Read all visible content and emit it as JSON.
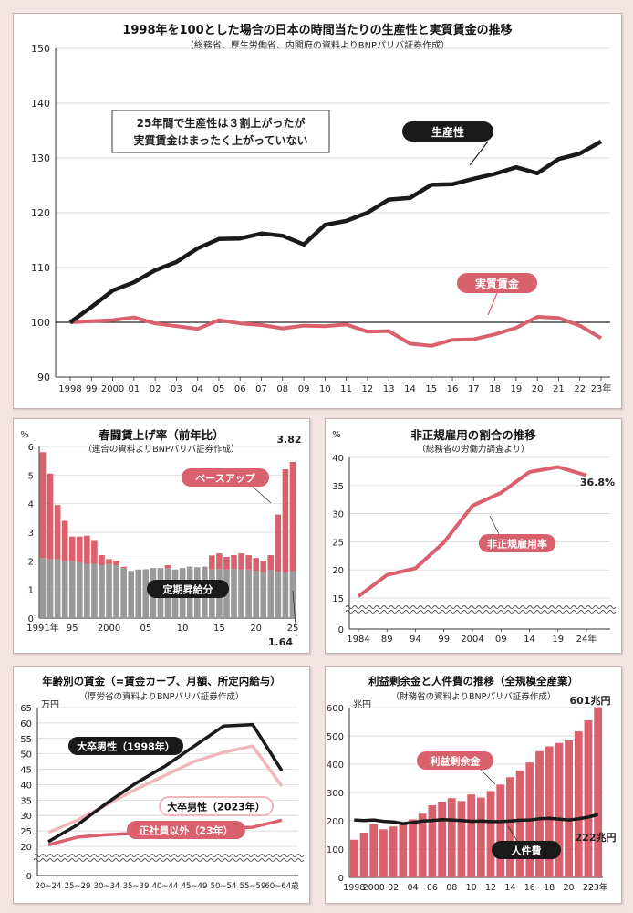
{
  "colors": {
    "black": "#1a1a1a",
    "red": "#d9606d",
    "pink_light": "#f0b6bd",
    "gray": "#9a9a9a"
  },
  "top": {
    "title": "1998年を100とした場合の日本の時間当たりの生産性と実質賃金の推移",
    "subtitle": "（総務省、厚生労働省、内閣府の資料よりBNPパリバ証券作成）",
    "callout_line1": "25年間で生産性は３割上がったが",
    "callout_line2": "実質賃金はまったく上がっていない",
    "x_tick_labels": [
      "1998",
      "99",
      "2000",
      "01",
      "02",
      "03",
      "04",
      "05",
      "06",
      "07",
      "08",
      "09",
      "10",
      "11",
      "12",
      "13",
      "14",
      "15",
      "16",
      "17",
      "18",
      "19",
      "20",
      "21",
      "22",
      "23年"
    ]
  },
  "wage": {
    "title": "春闘賃上げ率（前年比）",
    "subtitle": "（連合の資料よりBNPパリバ証券作成）",
    "unit": "%"
  },
  "nonreg": {
    "title": "非正規雇用の割合の推移",
    "subtitle": "（総務省の労働力調査より）",
    "unit": "%",
    "end_label": "36.8%"
  },
  "age": {
    "title": "年齢別の賃金（=賃金カーブ、月額、所定内給与）",
    "subtitle": "（厚労省の資料よりBNPパリバ証券作成）",
    "unit": "万円"
  },
  "profit": {
    "title": "利益剰余金と人件費の推移（全規模全産業）",
    "subtitle": "（財務省の資料よりBNPパリバ証券作成）",
    "unit": "兆円",
    "end_label_profit": "601兆円",
    "end_label_labor": "222兆円"
  },
  "chart_data": [
    {
      "type": "line",
      "title": "1998年を100とした場合の日本の時間当たりの生産性と実質賃金の推移",
      "x": [
        "1998",
        "99",
        "2000",
        "01",
        "02",
        "03",
        "04",
        "05",
        "06",
        "07",
        "08",
        "09",
        "10",
        "11",
        "12",
        "13",
        "14",
        "15",
        "16",
        "17",
        "18",
        "19",
        "20",
        "21",
        "22",
        "23年"
      ],
      "ylim": [
        90,
        150
      ],
      "y_ticks": [
        "90",
        "100",
        "110",
        "120",
        "130",
        "140",
        "150"
      ],
      "series": [
        {
          "name": "生産性",
          "color": "#1a1a1a",
          "values": [
            100,
            102.8,
            105.8,
            107.3,
            109.5,
            111,
            113.5,
            115.2,
            115.3,
            116.2,
            115.8,
            114.2,
            117.8,
            118.5,
            120,
            122.4,
            122.7,
            125.1,
            125.2,
            126.2,
            127.1,
            128.3,
            127.2,
            129.8,
            130.8,
            133
          ]
        },
        {
          "name": "実質賃金",
          "color": "#d9606d",
          "values": [
            100,
            100.2,
            100.4,
            100.9,
            99.8,
            99.3,
            98.8,
            100.4,
            99.8,
            99.5,
            98.9,
            99.4,
            99.3,
            99.6,
            98.3,
            98.4,
            96.1,
            95.7,
            96.8,
            96.9,
            97.8,
            99,
            101,
            100.8,
            99.4,
            97.1
          ]
        }
      ]
    },
    {
      "type": "bar",
      "title": "春闘賃上げ率（前年比）",
      "x_tick_labels": [
        "1991年",
        "95",
        "2000",
        "05",
        "10",
        "15",
        "20",
        "25"
      ],
      "ylim": [
        0,
        6
      ],
      "y_ticks": [
        "0",
        "1",
        "2",
        "3",
        "4",
        "5",
        "6"
      ],
      "categories": [
        "1991",
        "1992",
        "1993",
        "1994",
        "1995",
        "1996",
        "1997",
        "1998",
        "1999",
        "2000",
        "2001",
        "2002",
        "2003",
        "2004",
        "2005",
        "2006",
        "2007",
        "2008",
        "2009",
        "2010",
        "2011",
        "2012",
        "2013",
        "2014",
        "2015",
        "2016",
        "2017",
        "2018",
        "2019",
        "2020",
        "2021",
        "2022",
        "2023",
        "2024",
        "2025"
      ],
      "series": [
        {
          "name": "定期昇給分",
          "color": "#9a9a9a",
          "values": [
            2.1,
            2.05,
            2.05,
            2.0,
            2.0,
            1.95,
            1.9,
            1.9,
            1.85,
            1.9,
            1.85,
            1.75,
            1.65,
            1.7,
            1.7,
            1.75,
            1.75,
            1.75,
            1.7,
            1.75,
            1.8,
            1.78,
            1.8,
            1.7,
            1.72,
            1.7,
            1.72,
            1.7,
            1.7,
            1.65,
            1.6,
            1.68,
            1.62,
            1.6,
            1.64
          ]
        },
        {
          "name": "ベースアップ",
          "color": "#d9606d",
          "values": [
            3.7,
            3.0,
            1.9,
            1.4,
            0.85,
            0.9,
            0.98,
            0.8,
            0.35,
            0.16,
            0.16,
            0.04,
            0.0,
            0.0,
            0.01,
            0.0,
            0.0,
            0.1,
            0.0,
            0.0,
            0.0,
            0.0,
            0.0,
            0.49,
            0.54,
            0.44,
            0.48,
            0.56,
            0.5,
            0.45,
            0.41,
            0.52,
            2.0,
            3.6,
            3.82
          ]
        }
      ],
      "annotations": [
        "3.82",
        "1.64"
      ]
    },
    {
      "type": "line",
      "title": "非正規雇用の割合の推移",
      "x_tick_labels": [
        "1984",
        "89",
        "94",
        "99",
        "2004",
        "09",
        "14",
        "19",
        "24年"
      ],
      "ylim": [
        0,
        40
      ],
      "y_ticks": [
        "0",
        "15",
        "20",
        "25",
        "30",
        "35",
        "40"
      ],
      "series": [
        {
          "name": "非正規雇用率",
          "color": "#d9606d",
          "x": [
            1984,
            1989,
            1994,
            1999,
            2004,
            2009,
            2014,
            2019,
            2024
          ],
          "values": [
            15.3,
            19.1,
            20.3,
            24.9,
            31.4,
            33.7,
            37.4,
            38.3,
            36.8
          ]
        }
      ]
    },
    {
      "type": "line",
      "title": "年齢別の賃金（=賃金カーブ、月額、所定内給与）",
      "categories": [
        "20~24",
        "25~29",
        "30~34",
        "35~39",
        "40~44",
        "45~49",
        "50~54",
        "55~59",
        "60~64歳"
      ],
      "ylim": [
        0,
        65
      ],
      "y_ticks": [
        "0",
        "20",
        "25",
        "30",
        "35",
        "40",
        "45",
        "50",
        "55",
        "60",
        "65"
      ],
      "series": [
        {
          "name": "大卒男性（1998年）",
          "color": "#1a1a1a",
          "values": [
            21.5,
            27,
            34,
            40.5,
            46,
            52.5,
            59,
            59.5,
            44.5
          ]
        },
        {
          "name": "大卒男性（2023年）",
          "color": "#f0b6bd",
          "values": [
            24.5,
            28.5,
            33.5,
            38.5,
            43,
            47.5,
            50.5,
            52.5,
            39.5
          ]
        },
        {
          "name": "正社員以外（23年）",
          "color": "#d9606d",
          "values": [
            20.5,
            23,
            23.8,
            24.2,
            24.8,
            25.3,
            26,
            26.2,
            28.5
          ]
        }
      ]
    },
    {
      "type": "bar",
      "title": "利益剰余金と人件費の推移（全規模全産業）",
      "x_tick_labels": [
        "1998",
        "2000",
        "02",
        "04",
        "06",
        "08",
        "10",
        "12",
        "14",
        "16",
        "18",
        "20",
        "22",
        "23年"
      ],
      "ylim": [
        0,
        600
      ],
      "y_ticks": [
        "0",
        "100",
        "200",
        "300",
        "400",
        "500",
        "600"
      ],
      "categories": [
        "1998",
        "1999",
        "2000",
        "2001",
        "2002",
        "2003",
        "2004",
        "2005",
        "2006",
        "2007",
        "2008",
        "2009",
        "2010",
        "2011",
        "2012",
        "2013",
        "2014",
        "2015",
        "2016",
        "2017",
        "2018",
        "2019",
        "2020",
        "2021",
        "2022",
        "2023"
      ],
      "series": [
        {
          "name": "利益剰余金",
          "color": "#d9606d",
          "values": [
            133,
            158,
            188,
            170,
            180,
            190,
            205,
            225,
            255,
            268,
            280,
            270,
            293,
            282,
            305,
            328,
            354,
            378,
            406,
            446,
            463,
            475,
            484,
            516,
            555,
            601
          ]
        },
        {
          "name": "人件費",
          "color": "#1a1a1a",
          "type": "line",
          "values": [
            203,
            201,
            203,
            198,
            196,
            190,
            194,
            199,
            201,
            204,
            203,
            201,
            198,
            199,
            197,
            197,
            199,
            202,
            203,
            207,
            209,
            206,
            203,
            207,
            213,
            222
          ]
        }
      ]
    }
  ]
}
